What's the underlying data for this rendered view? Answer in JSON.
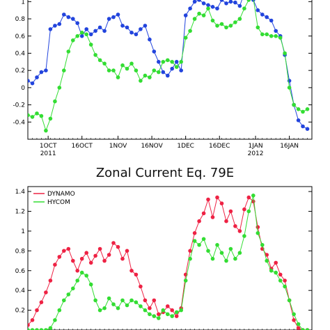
{
  "chart_data": [
    {
      "type": "line",
      "title": "",
      "xlabel": "",
      "ylabel": "",
      "ylim": [
        -0.6,
        1.1
      ],
      "yticks": [
        -0.4,
        -0.2,
        0,
        0.2,
        0.4,
        0.6,
        0.8,
        1
      ],
      "ytick_labels": [
        "-0.4",
        "-0.2",
        "0",
        "0.2",
        "0.4",
        "0.6",
        "0.8",
        "1"
      ],
      "xlim": [
        "2011-09-22",
        "2012-01-26"
      ],
      "xticks": [
        {
          "date": "2011-10-01",
          "label": "1OCT",
          "sub": "2011"
        },
        {
          "date": "2011-10-16",
          "label": "16OCT",
          "sub": ""
        },
        {
          "date": "2011-11-01",
          "label": "1NOV",
          "sub": ""
        },
        {
          "date": "2011-11-16",
          "label": "16NOV",
          "sub": ""
        },
        {
          "date": "2011-12-01",
          "label": "1DEC",
          "sub": ""
        },
        {
          "date": "2011-12-16",
          "label": "16DEC",
          "sub": ""
        },
        {
          "date": "2012-01-01",
          "label": "1JAN",
          "sub": "2012"
        },
        {
          "date": "2012-01-16",
          "label": "16JAN",
          "sub": ""
        }
      ],
      "grid": false,
      "series": [
        {
          "name": "",
          "color": "#2244dd",
          "connected": "partial",
          "x": [
            "2011-09-22",
            "2011-09-24",
            "2011-09-26",
            "2011-09-28",
            "2011-09-30",
            "2011-10-02",
            "2011-10-04",
            "2011-10-06",
            "2011-10-08",
            "2011-10-10",
            "2011-10-12",
            "2011-10-14",
            "2011-10-16",
            "2011-10-18",
            "2011-10-20",
            "2011-10-22",
            "2011-10-24",
            "2011-10-26",
            "2011-10-28",
            "2011-10-30",
            "2011-11-01",
            "2011-11-03",
            "2011-11-05",
            "2011-11-07",
            "2011-11-09",
            "2011-11-11",
            "2011-11-13",
            "2011-11-15",
            "2011-11-17",
            "2011-11-19",
            "2011-11-21",
            "2011-11-23",
            "2011-11-25",
            "2011-11-27",
            "2011-11-29",
            "2011-12-01",
            "2011-12-03",
            "2011-12-05",
            "2011-12-07",
            "2011-12-09",
            "2011-12-11",
            "2011-12-13",
            "2011-12-15",
            "2011-12-17",
            "2011-12-19",
            "2011-12-21",
            "2011-12-23",
            "2011-12-25",
            "2011-12-27",
            "2011-12-29",
            "2011-12-31",
            "2012-01-02",
            "2012-01-04",
            "2012-01-06",
            "2012-01-08",
            "2012-01-10",
            "2012-01-12",
            "2012-01-14",
            "2012-01-16",
            "2012-01-18",
            "2012-01-20",
            "2012-01-22",
            "2012-01-24"
          ],
          "y": [
            0.08,
            0.05,
            0.12,
            0.18,
            0.2,
            0.68,
            0.72,
            0.74,
            0.85,
            0.82,
            0.8,
            0.75,
            0.6,
            0.68,
            0.62,
            0.66,
            0.7,
            0.66,
            0.8,
            0.82,
            0.85,
            0.72,
            0.7,
            0.64,
            0.62,
            0.68,
            0.72,
            0.56,
            0.42,
            0.3,
            0.18,
            0.14,
            0.22,
            0.3,
            0.2,
            0.84,
            0.92,
            1.0,
            1.02,
            0.98,
            0.96,
            0.94,
            0.92,
            1.02,
            0.98,
            1.0,
            0.99,
            0.95,
            1.1,
            1.05,
            1.02,
            0.9,
            0.85,
            0.82,
            0.78,
            0.66,
            0.6,
            0.38,
            0.08,
            -0.2,
            -0.38,
            -0.45,
            -0.48
          ]
        },
        {
          "name": "",
          "color": "#33dd33",
          "connected": "all",
          "x": [
            "2011-09-22",
            "2011-09-24",
            "2011-09-26",
            "2011-09-28",
            "2011-09-30",
            "2011-10-02",
            "2011-10-04",
            "2011-10-06",
            "2011-10-08",
            "2011-10-10",
            "2011-10-12",
            "2011-10-14",
            "2011-10-16",
            "2011-10-18",
            "2011-10-20",
            "2011-10-22",
            "2011-10-24",
            "2011-10-26",
            "2011-10-28",
            "2011-10-30",
            "2011-11-01",
            "2011-11-03",
            "2011-11-05",
            "2011-11-07",
            "2011-11-09",
            "2011-11-11",
            "2011-11-13",
            "2011-11-15",
            "2011-11-17",
            "2011-11-19",
            "2011-11-21",
            "2011-11-23",
            "2011-11-25",
            "2011-11-27",
            "2011-11-29",
            "2011-12-01",
            "2011-12-03",
            "2011-12-05",
            "2011-12-07",
            "2011-12-09",
            "2011-12-11",
            "2011-12-13",
            "2011-12-15",
            "2011-12-17",
            "2011-12-19",
            "2011-12-21",
            "2011-12-23",
            "2011-12-25",
            "2011-12-27",
            "2011-12-29",
            "2011-12-31",
            "2012-01-02",
            "2012-01-04",
            "2012-01-06",
            "2012-01-08",
            "2012-01-10",
            "2012-01-12",
            "2012-01-14",
            "2012-01-16",
            "2012-01-18",
            "2012-01-20",
            "2012-01-22",
            "2012-01-24"
          ],
          "y": [
            -0.32,
            -0.34,
            -0.3,
            -0.33,
            -0.5,
            -0.36,
            -0.16,
            0.0,
            0.2,
            0.42,
            0.55,
            0.6,
            0.64,
            0.62,
            0.5,
            0.38,
            0.32,
            0.28,
            0.2,
            0.2,
            0.12,
            0.26,
            0.22,
            0.28,
            0.2,
            0.08,
            0.14,
            0.12,
            0.2,
            0.18,
            0.3,
            0.32,
            0.3,
            0.24,
            0.3,
            0.58,
            0.66,
            0.8,
            0.86,
            0.84,
            0.92,
            0.78,
            0.72,
            0.74,
            0.7,
            0.72,
            0.76,
            0.8,
            0.92,
            1.02,
            1.04,
            0.7,
            0.62,
            0.62,
            0.6,
            0.6,
            0.58,
            0.4,
            0.0,
            -0.2,
            -0.25,
            -0.28,
            -0.25
          ]
        }
      ]
    },
    {
      "type": "line",
      "title": "Zonal Current Eq. 79E",
      "xlabel": "",
      "ylabel": "",
      "ylim": [
        0,
        1.45
      ],
      "yticks": [
        0.2,
        0.4,
        0.6,
        0.8,
        1,
        1.2,
        1.4
      ],
      "ytick_labels": [
        "0.2",
        "0.4",
        "0.6",
        "0.8",
        "1",
        "1.2",
        "1.4"
      ],
      "xlim": [
        "2011-09-22",
        "2012-01-26"
      ],
      "grid": false,
      "legend": "top-left",
      "series": [
        {
          "name": "DYNAMO",
          "color": "#ee2244",
          "x": [
            "2011-09-22",
            "2011-09-24",
            "2011-09-26",
            "2011-09-28",
            "2011-09-30",
            "2011-10-02",
            "2011-10-04",
            "2011-10-06",
            "2011-10-08",
            "2011-10-10",
            "2011-10-12",
            "2011-10-14",
            "2011-10-16",
            "2011-10-18",
            "2011-10-20",
            "2011-10-22",
            "2011-10-24",
            "2011-10-26",
            "2011-10-28",
            "2011-10-30",
            "2011-11-01",
            "2011-11-03",
            "2011-11-05",
            "2011-11-07",
            "2011-11-09",
            "2011-11-11",
            "2011-11-13",
            "2011-11-15",
            "2011-11-17",
            "2011-11-19",
            "2011-11-21",
            "2011-11-23",
            "2011-11-25",
            "2011-11-27",
            "2011-11-29",
            "2011-12-01",
            "2011-12-03",
            "2011-12-05",
            "2011-12-07",
            "2011-12-09",
            "2011-12-11",
            "2011-12-13",
            "2011-12-15",
            "2011-12-17",
            "2011-12-19",
            "2011-12-21",
            "2011-12-23",
            "2011-12-25",
            "2011-12-27",
            "2011-12-29",
            "2011-12-31",
            "2012-01-02",
            "2012-01-04",
            "2012-01-06",
            "2012-01-08",
            "2012-01-10",
            "2012-01-12",
            "2012-01-14",
            "2012-01-16",
            "2012-01-18",
            "2012-01-20",
            "2012-01-22",
            "2012-01-24"
          ],
          "y": [
            0.05,
            0.1,
            0.2,
            0.28,
            0.38,
            0.5,
            0.66,
            0.74,
            0.8,
            0.82,
            0.7,
            0.6,
            0.72,
            0.78,
            0.68,
            0.75,
            0.82,
            0.7,
            0.76,
            0.88,
            0.84,
            0.72,
            0.8,
            0.6,
            0.56,
            0.44,
            0.3,
            0.22,
            0.3,
            0.16,
            0.18,
            0.24,
            0.2,
            0.14,
            0.22,
            0.56,
            0.8,
            0.98,
            1.1,
            1.18,
            1.32,
            1.14,
            1.34,
            1.28,
            1.1,
            1.2,
            1.05,
            1.0,
            1.22,
            1.34,
            1.3,
            1.04,
            0.82,
            0.76,
            0.62,
            0.68,
            0.56,
            0.5,
            0.3,
            0.1,
            0.02,
            0.0,
            0.0
          ]
        },
        {
          "name": "HYCOM",
          "color": "#33dd33",
          "x": [
            "2011-09-22",
            "2011-09-24",
            "2011-09-26",
            "2011-09-28",
            "2011-09-30",
            "2011-10-02",
            "2011-10-04",
            "2011-10-06",
            "2011-10-08",
            "2011-10-10",
            "2011-10-12",
            "2011-10-14",
            "2011-10-16",
            "2011-10-18",
            "2011-10-20",
            "2011-10-22",
            "2011-10-24",
            "2011-10-26",
            "2011-10-28",
            "2011-10-30",
            "2011-11-01",
            "2011-11-03",
            "2011-11-05",
            "2011-11-07",
            "2011-11-09",
            "2011-11-11",
            "2011-11-13",
            "2011-11-15",
            "2011-11-17",
            "2011-11-19",
            "2011-11-21",
            "2011-11-23",
            "2011-11-25",
            "2011-11-27",
            "2011-11-29",
            "2011-12-01",
            "2011-12-03",
            "2011-12-05",
            "2011-12-07",
            "2011-12-09",
            "2011-12-11",
            "2011-12-13",
            "2011-12-15",
            "2011-12-17",
            "2011-12-19",
            "2011-12-21",
            "2011-12-23",
            "2011-12-25",
            "2011-12-27",
            "2011-12-29",
            "2011-12-31",
            "2012-01-02",
            "2012-01-04",
            "2012-01-06",
            "2012-01-08",
            "2012-01-10",
            "2012-01-12",
            "2012-01-14",
            "2012-01-16",
            "2012-01-18",
            "2012-01-20",
            "2012-01-22",
            "2012-01-24"
          ],
          "y": [
            0.0,
            0.0,
            0.0,
            0.0,
            0.0,
            0.02,
            0.1,
            0.2,
            0.3,
            0.36,
            0.42,
            0.5,
            0.58,
            0.55,
            0.46,
            0.3,
            0.2,
            0.22,
            0.32,
            0.26,
            0.22,
            0.3,
            0.25,
            0.3,
            0.28,
            0.24,
            0.2,
            0.16,
            0.14,
            0.12,
            0.2,
            0.16,
            0.14,
            0.18,
            0.2,
            0.5,
            0.72,
            0.9,
            0.86,
            0.92,
            0.8,
            0.72,
            0.86,
            0.78,
            0.7,
            0.82,
            0.72,
            0.78,
            0.95,
            1.2,
            1.36,
            0.98,
            0.86,
            0.7,
            0.6,
            0.58,
            0.5,
            0.44,
            0.3,
            0.16,
            0.06,
            0.0,
            0.0
          ]
        }
      ]
    }
  ]
}
